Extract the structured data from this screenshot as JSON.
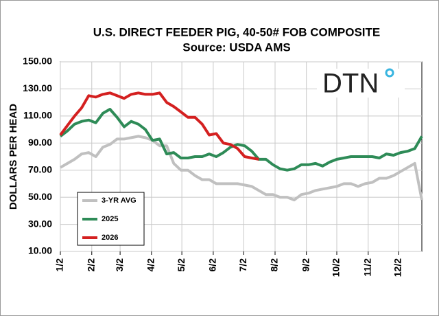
{
  "chart_data": {
    "type": "line",
    "title": "U.S. DIRECT FEEDER PIG, 40-50# FOB COMPOSITE",
    "subtitle": "Source:  USDA AMS",
    "logo": "DTN",
    "y_label": "DOLLARS PER HEAD",
    "x": [
      0,
      1,
      2,
      3,
      4,
      5,
      6,
      7,
      8,
      9,
      10,
      11,
      12,
      13,
      14,
      15,
      16,
      17,
      18,
      19,
      20,
      21,
      22,
      23,
      24,
      25,
      26,
      27,
      28,
      29,
      30,
      31,
      32,
      33,
      34,
      35,
      36,
      37,
      38,
      39,
      40,
      41,
      42,
      43,
      44,
      45,
      46,
      47,
      48,
      49,
      50,
      51
    ],
    "xlim": [
      0,
      51
    ],
    "xticks": [
      {
        "value": 0,
        "label": "1/2"
      },
      {
        "value": 4.43,
        "label": "2/2"
      },
      {
        "value": 8.43,
        "label": "3/2"
      },
      {
        "value": 12.86,
        "label": "4/2"
      },
      {
        "value": 17.14,
        "label": "5/2"
      },
      {
        "value": 21.57,
        "label": "6/2"
      },
      {
        "value": 25.86,
        "label": "7/2"
      },
      {
        "value": 30.29,
        "label": "8/2"
      },
      {
        "value": 34.71,
        "label": "9/2"
      },
      {
        "value": 39,
        "label": "10/2"
      },
      {
        "value": 43.43,
        "label": "11/2"
      },
      {
        "value": 47.71,
        "label": "12/2"
      }
    ],
    "ylim": [
      10,
      150
    ],
    "yticks": [
      {
        "value": 10,
        "label": "10.00"
      },
      {
        "value": 30,
        "label": "30.00"
      },
      {
        "value": 50,
        "label": "50.00"
      },
      {
        "value": 70,
        "label": "70.00"
      },
      {
        "value": 90,
        "label": "90.00"
      },
      {
        "value": 110,
        "label": "110.00"
      },
      {
        "value": 130,
        "label": "130.00"
      },
      {
        "value": 150,
        "label": "150.00"
      }
    ],
    "grid": true,
    "legend": "lower left",
    "series": [
      {
        "name": "3-YR AVG",
        "color": "#c0c0c0",
        "values": [
          72,
          75,
          78,
          82,
          83,
          80,
          87,
          89,
          93,
          93,
          94,
          95,
          94,
          92,
          88,
          88,
          75,
          70,
          70,
          66,
          63,
          63,
          60,
          60,
          60,
          60,
          59,
          58,
          55,
          52,
          52,
          50,
          50,
          48,
          52,
          53,
          55,
          56,
          57,
          58,
          60,
          60,
          58,
          60,
          61,
          64,
          64,
          66,
          69,
          72,
          75,
          48
        ]
      },
      {
        "name": "2025",
        "color": "#2e8b57",
        "values": [
          95,
          99,
          104,
          106,
          107,
          105,
          112,
          115,
          109,
          102,
          106,
          104,
          100,
          92,
          93,
          82,
          83,
          79,
          79,
          80,
          80,
          82,
          80,
          83,
          87,
          89,
          88,
          84,
          78,
          78,
          74,
          71,
          70,
          71,
          74,
          74,
          75,
          73,
          76,
          78,
          79,
          80,
          80,
          80,
          80,
          79,
          82,
          81,
          83,
          84,
          86,
          95
        ]
      },
      {
        "name": "2026",
        "color": "#d42020",
        "values": [
          96,
          103,
          110,
          116,
          125,
          124,
          126,
          127,
          125,
          123,
          126,
          127,
          126,
          126,
          127,
          120,
          117,
          113,
          109,
          109,
          104,
          96,
          97,
          90,
          89,
          86,
          80,
          79,
          78,
          null,
          null,
          null,
          null,
          null,
          null,
          null,
          null,
          null,
          null,
          null,
          null,
          null,
          null,
          null,
          null,
          null,
          null,
          null,
          null,
          null,
          null,
          null
        ]
      }
    ]
  }
}
